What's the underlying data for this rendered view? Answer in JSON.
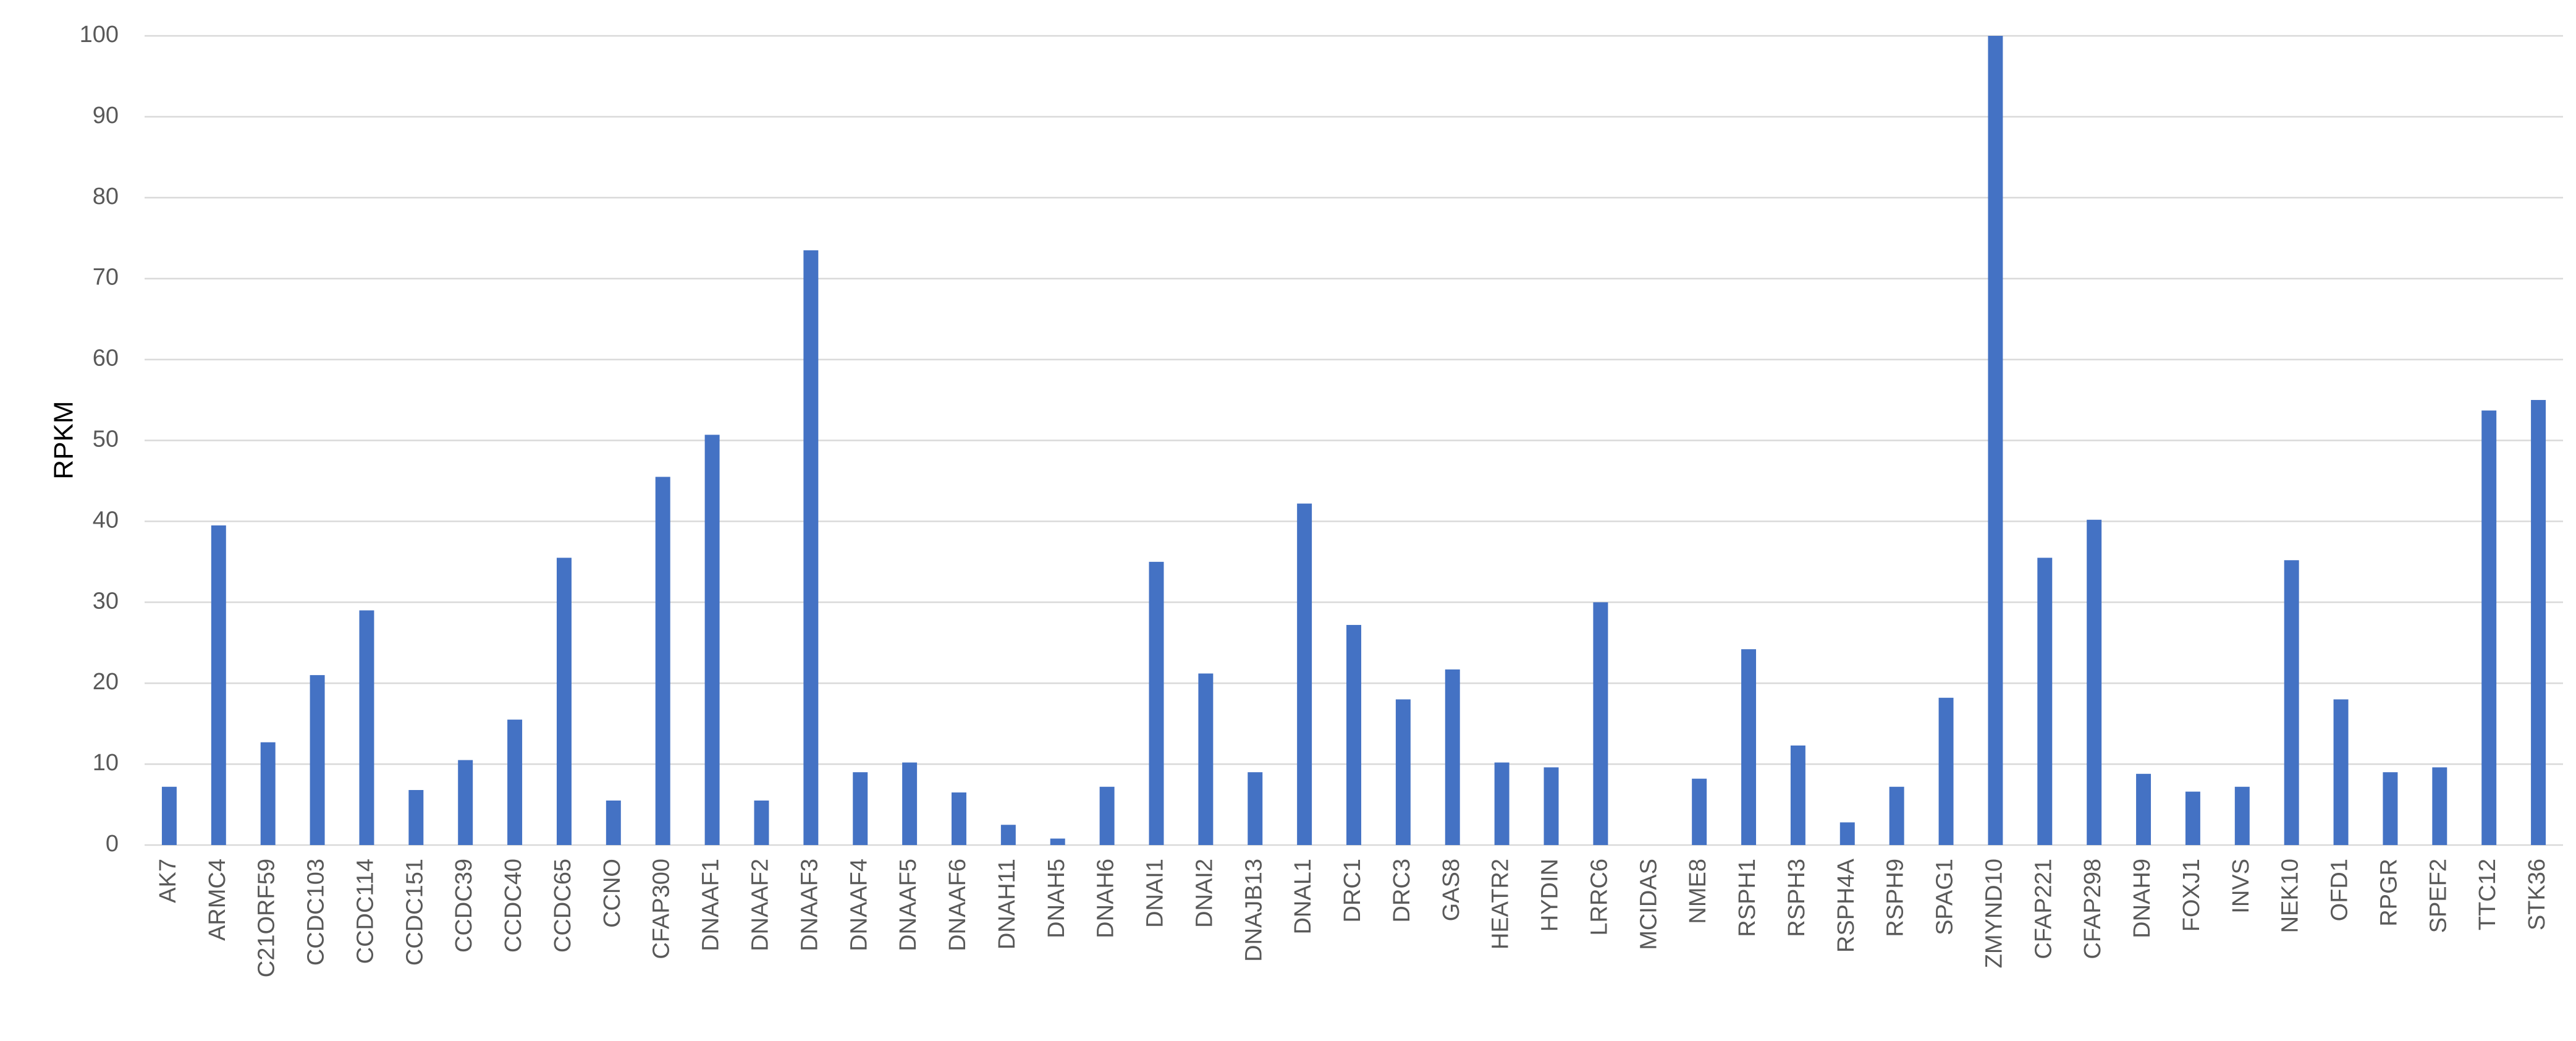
{
  "chart_data": {
    "type": "bar",
    "y_label": "RPKM",
    "categories": [
      "AK7",
      "ARMC4",
      "C21ORF59",
      "CCDC103",
      "CCDC114",
      "CCDC151",
      "CCDC39",
      "CCDC40",
      "CCDC65",
      "CCNO",
      "CFAP300",
      "DNAAF1",
      "DNAAF2",
      "DNAAF3",
      "DNAAF4",
      "DNAAF5",
      "DNAAF6",
      "DNAH11",
      "DNAH5",
      "DNAH6",
      "DNAI1",
      "DNAI2",
      "DNAJB13",
      "DNAL1",
      "DRC1",
      "DRC3",
      "GAS8",
      "HEATR2",
      "HYDIN",
      "LRRC6",
      "MCIDAS",
      "NME8",
      "RSPH1",
      "RSPH3",
      "RSPH4A",
      "RSPH9",
      "SPAG1",
      "ZMYND10",
      "CFAP221",
      "CFAP298",
      "DNAH9",
      "FOXJ1",
      "INVS",
      "NEK10",
      "OFD1",
      "RPGR",
      "SPEF2",
      "TTC12",
      "STK36"
    ],
    "values": [
      7.2,
      39.5,
      12.7,
      21,
      29,
      6.8,
      10.5,
      15.5,
      35.5,
      5.5,
      45.5,
      50.7,
      5.5,
      73.5,
      9,
      10.2,
      6.5,
      2.5,
      0.8,
      7.2,
      35,
      21.2,
      9,
      42.2,
      27.2,
      18,
      21.7,
      10.2,
      9.6,
      30,
      0,
      8.2,
      24.2,
      12.3,
      2.8,
      7.2,
      18.2,
      100,
      35.5,
      40.2,
      8.8,
      6.6,
      7.2,
      35.2,
      18,
      9,
      9.6,
      53.7,
      55
    ],
    "color": "#4472c4",
    "ylim": [
      0,
      100
    ],
    "yticks": [
      0,
      10,
      20,
      30,
      40,
      50,
      60,
      70,
      80,
      90,
      100
    ],
    "grid": true
  }
}
